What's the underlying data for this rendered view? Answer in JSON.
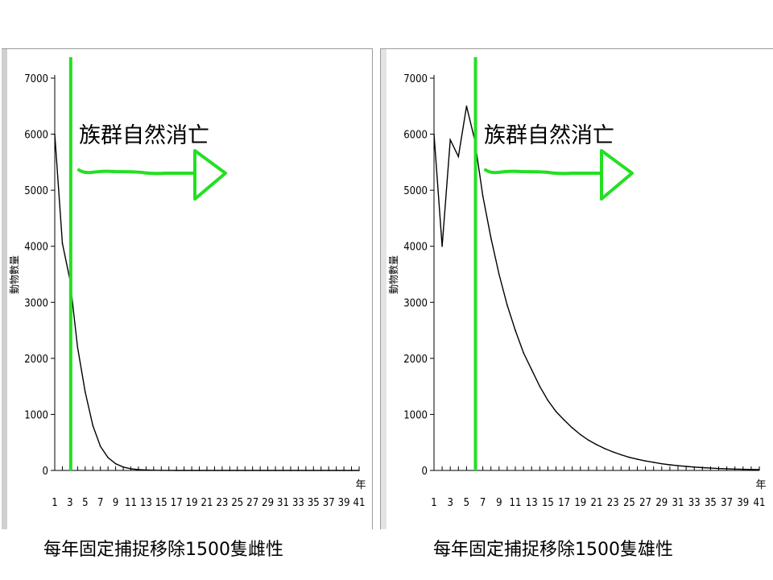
{
  "chart_data": [
    {
      "type": "line",
      "title": "",
      "ylabel": "動物數量",
      "xlabel": "年",
      "ylim": [
        0,
        7000
      ],
      "xlim": [
        1,
        41
      ],
      "yticks": [
        0,
        1000,
        2000,
        3000,
        4000,
        5000,
        6000,
        7000
      ],
      "xticks": [
        1,
        3,
        5,
        7,
        9,
        11,
        13,
        15,
        17,
        19,
        21,
        23,
        25,
        27,
        29,
        31,
        33,
        35,
        37,
        39,
        41
      ],
      "grid": false,
      "series": [
        {
          "x": [
            1,
            2,
            3,
            4,
            5,
            6,
            7,
            8,
            9,
            10,
            11,
            12,
            13,
            14,
            15,
            16,
            17,
            18,
            19,
            20,
            21,
            22,
            23,
            24,
            25,
            26,
            27,
            28,
            29,
            30,
            31,
            32,
            33,
            34,
            35,
            36,
            37,
            38,
            39,
            40,
            41
          ],
          "values": [
            6000,
            4050,
            3400,
            2200,
            1400,
            800,
            430,
            230,
            120,
            60,
            30,
            15,
            8,
            4,
            2,
            1,
            0,
            0,
            0,
            0,
            0,
            0,
            0,
            0,
            0,
            0,
            0,
            0,
            0,
            0,
            0,
            0,
            0,
            0,
            0,
            0,
            0,
            0,
            0,
            0,
            0
          ],
          "color": "#000000"
        }
      ],
      "marker_line": {
        "x": 3.1,
        "color": "#22e022"
      },
      "annotation": "族群自然消亡",
      "caption": "每年固定捕捉移除1500隻雌性"
    },
    {
      "type": "line",
      "title": "",
      "ylabel": "動物數量",
      "xlabel": "年",
      "ylim": [
        0,
        7000
      ],
      "xlim": [
        1,
        41
      ],
      "yticks": [
        0,
        1000,
        2000,
        3000,
        4000,
        5000,
        6000,
        7000
      ],
      "xticks": [
        1,
        3,
        5,
        7,
        9,
        11,
        13,
        15,
        17,
        19,
        21,
        23,
        25,
        27,
        29,
        31,
        33,
        35,
        37,
        39,
        41
      ],
      "grid": false,
      "series": [
        {
          "x": [
            1,
            2,
            3,
            4,
            5,
            6,
            7,
            8,
            9,
            10,
            11,
            12,
            13,
            14,
            15,
            16,
            17,
            18,
            19,
            20,
            21,
            22,
            23,
            24,
            25,
            26,
            27,
            28,
            29,
            30,
            31,
            32,
            33,
            34,
            35,
            36,
            37,
            38,
            39,
            40,
            41
          ],
          "values": [
            6000,
            4000,
            5900,
            5600,
            6500,
            5900,
            4900,
            4150,
            3500,
            2950,
            2500,
            2100,
            1800,
            1500,
            1250,
            1050,
            900,
            760,
            640,
            540,
            460,
            390,
            330,
            280,
            235,
            200,
            170,
            145,
            120,
            100,
            85,
            72,
            60,
            50,
            42,
            35,
            30,
            25,
            20,
            17,
            14
          ],
          "color": "#000000"
        }
      ],
      "marker_line": {
        "x": 6.1,
        "color": "#22e022"
      },
      "annotation": "族群自然消亡",
      "caption": "每年固定捕捉移除1500隻雄性"
    }
  ]
}
